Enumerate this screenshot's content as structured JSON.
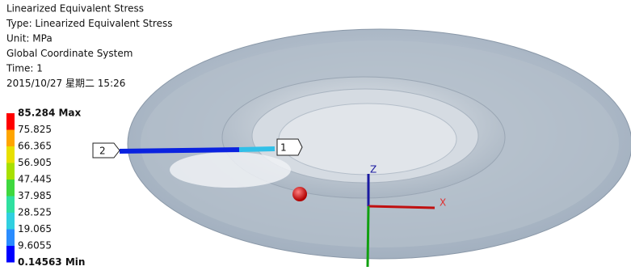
{
  "header": {
    "lines": [
      "Linearized Equivalent Stress",
      "Type: Linearized Equivalent Stress",
      "Unit: MPa",
      "Global Coordinate System",
      "Time: 1",
      "2015/10/27 星期二 15:26"
    ]
  },
  "legend": {
    "labels": [
      "85.284 Max",
      "75.825",
      "66.365",
      "56.905",
      "47.445",
      "37.985",
      "28.525",
      "19.065",
      "9.6055",
      "0.14563 Min"
    ],
    "colors": [
      "#ff0000",
      "#ffa500",
      "#e8e000",
      "#a8e000",
      "#3fd83f",
      "#2fe0a0",
      "#30d0e0",
      "#2a8cff",
      "#0000ff"
    ]
  },
  "probes": [
    "1",
    "2"
  ],
  "axes": [
    "Z",
    "X"
  ]
}
